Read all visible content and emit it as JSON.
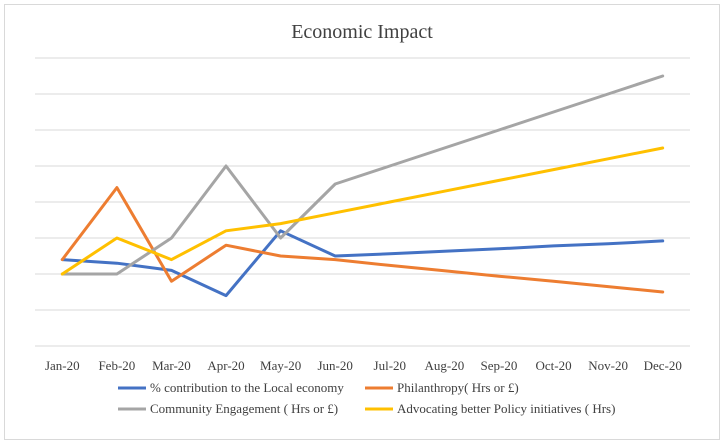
{
  "chart_data": {
    "type": "line",
    "title": "Economic Impact",
    "xlabel": "",
    "ylabel": "",
    "categories": [
      "Jan-20",
      "Feb-20",
      "Mar-20",
      "Apr-20",
      "May-20",
      "Jun-20",
      "Jul-20",
      "Aug-20",
      "Sep-20",
      "Oct-20",
      "Nov-20",
      "Dec-20"
    ],
    "ylim": [
      0,
      8
    ],
    "grid": true,
    "show_y_tick_labels": false,
    "legend_position": "bottom",
    "series": [
      {
        "name": "% contribution to the Local economy",
        "color": "#4472C4",
        "values": [
          2.4,
          2.3,
          2.1,
          1.4,
          3.2,
          2.5,
          2.56,
          2.63,
          2.7,
          2.78,
          2.84,
          2.92
        ]
      },
      {
        "name": "Philanthropy( Hrs or £)",
        "color": "#ED7D31",
        "values": [
          2.4,
          4.4,
          1.8,
          2.8,
          2.5,
          2.4,
          2.24,
          2.09,
          1.94,
          1.8,
          1.65,
          1.5
        ]
      },
      {
        "name": "Community Engagement ( Hrs or £)",
        "color": "#A5A5A5",
        "values": [
          2.0,
          2.0,
          3.0,
          5.0,
          3.0,
          4.5,
          5.0,
          5.5,
          6.0,
          6.5,
          7.0,
          7.5
        ]
      },
      {
        "name": "Advocating  better Policy initiatives ( Hrs)",
        "color": "#FFC000",
        "values": [
          2.0,
          3.0,
          2.4,
          3.2,
          3.4,
          3.7,
          4.0,
          4.3,
          4.6,
          4.9,
          5.2,
          5.5
        ]
      }
    ]
  }
}
